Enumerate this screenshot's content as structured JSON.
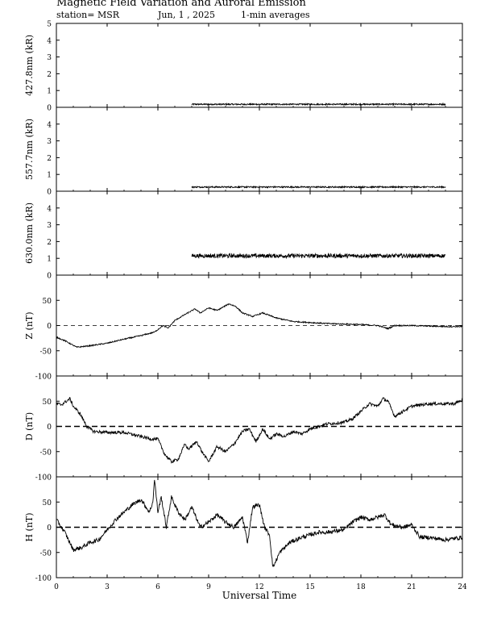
{
  "header": {
    "title": "Magnetic Field Variation and Auroral Emission",
    "station": "station= MSR",
    "date": "Jun, 1 , 2025",
    "averaging": "1-min averages"
  },
  "chart_data": [
    {
      "type": "line",
      "ylabel": "427.8nm (kR)",
      "ylim": [
        0,
        5
      ],
      "yticks": [
        0,
        1,
        2,
        3,
        4,
        5
      ],
      "xlim": [
        0,
        24
      ],
      "x_range": [
        8,
        23
      ],
      "baseline": 0.18,
      "noise": 0.04,
      "grid": false
    },
    {
      "type": "line",
      "ylabel": "557.7nm (kR)",
      "ylim": [
        0,
        5
      ],
      "yticks": [
        0,
        1,
        2,
        3,
        4
      ],
      "xlim": [
        0,
        24
      ],
      "x_range": [
        8,
        23
      ],
      "baseline": 0.25,
      "noise": 0.04,
      "grid": false
    },
    {
      "type": "line",
      "ylabel": "630.0nm (kR)",
      "ylim": [
        0,
        5
      ],
      "yticks": [
        0,
        1,
        2,
        3,
        4
      ],
      "xlim": [
        0,
        24
      ],
      "x_range": [
        8,
        23
      ],
      "baseline": 1.15,
      "noise": 0.12,
      "grid": false
    },
    {
      "type": "line",
      "ylabel": "Z (nT)",
      "ylim": [
        -100,
        100
      ],
      "yticks": [
        -100,
        -50,
        0,
        50
      ],
      "xlim": [
        0,
        24
      ],
      "zero_line": "dashed-thin",
      "noise": 1.2,
      "x": [
        0,
        0.5,
        1.2,
        2,
        3,
        4,
        5,
        5.8,
        6.3,
        6.6,
        7,
        7.5,
        8.2,
        8.5,
        9,
        9.5,
        10.2,
        10.6,
        11,
        11.6,
        12.2,
        13,
        14,
        15,
        16,
        17,
        18,
        19,
        19.6,
        20,
        21,
        22,
        23,
        24
      ],
      "y": [
        -23,
        -30,
        -43,
        -40,
        -35,
        -27,
        -20,
        -13,
        0,
        -5,
        10,
        20,
        33,
        25,
        35,
        30,
        43,
        38,
        25,
        18,
        25,
        15,
        8,
        6,
        4,
        3,
        2,
        0,
        -6,
        0,
        0,
        -1,
        -2,
        -2
      ]
    },
    {
      "type": "line",
      "ylabel": "D (nT)",
      "ylim": [
        -100,
        100
      ],
      "yticks": [
        -100,
        -50,
        0,
        50
      ],
      "xlim": [
        0,
        24
      ],
      "zero_line": "dashed-thick",
      "noise": 3,
      "x": [
        0,
        0.3,
        0.8,
        1,
        1.4,
        1.8,
        2.2,
        3,
        4,
        5,
        5.6,
        6,
        6.4,
        6.8,
        7.2,
        7.6,
        7.8,
        8.3,
        8.6,
        9,
        9.5,
        10,
        10.5,
        11,
        11.4,
        11.8,
        12.2,
        12.6,
        13,
        13.5,
        14,
        14.5,
        15,
        16,
        17,
        17.5,
        18,
        18.5,
        19,
        19.3,
        19.6,
        20,
        20.5,
        21,
        22,
        23,
        23.5,
        24
      ],
      "y": [
        45,
        43,
        55,
        40,
        25,
        0,
        -10,
        -12,
        -12,
        -20,
        -25,
        -25,
        -55,
        -70,
        -65,
        -35,
        -45,
        -30,
        -50,
        -70,
        -40,
        -50,
        -35,
        -10,
        -5,
        -30,
        -5,
        -25,
        -15,
        -20,
        -10,
        -15,
        -5,
        5,
        8,
        15,
        30,
        45,
        40,
        55,
        50,
        20,
        30,
        40,
        45,
        45,
        45,
        52
      ]
    },
    {
      "type": "line",
      "ylabel": "H (nT)",
      "ylim": [
        -100,
        100
      ],
      "yticks": [
        -100,
        -50,
        0,
        50
      ],
      "xlim": [
        0,
        24
      ],
      "zero_line": "dashed-thick",
      "noise": 4,
      "x": [
        0,
        0.5,
        1,
        1.5,
        2,
        2.5,
        3,
        3.5,
        4,
        4.5,
        5,
        5.5,
        5.7,
        5.8,
        6,
        6.2,
        6.5,
        6.8,
        7.2,
        7.6,
        8,
        8.5,
        9,
        9.5,
        10,
        10.5,
        11,
        11.3,
        11.6,
        12,
        12.3,
        12.6,
        12.8,
        13.2,
        13.8,
        14.5,
        15,
        15.5,
        16,
        17,
        17.5,
        18,
        18.5,
        19,
        19.4,
        19.8,
        20.5,
        21,
        21.5,
        22,
        23,
        24
      ],
      "y": [
        15,
        -10,
        -45,
        -40,
        -30,
        -25,
        -5,
        15,
        30,
        45,
        55,
        30,
        50,
        95,
        30,
        60,
        0,
        60,
        30,
        15,
        40,
        0,
        10,
        25,
        10,
        0,
        20,
        -30,
        40,
        45,
        0,
        -15,
        -80,
        -50,
        -30,
        -20,
        -15,
        -10,
        -10,
        -5,
        10,
        20,
        15,
        20,
        25,
        5,
        0,
        5,
        -20,
        -20,
        -25,
        -20
      ]
    }
  ],
  "xaxis": {
    "label": "Universal Time",
    "ticks": [
      0,
      3,
      6,
      9,
      12,
      15,
      18,
      21,
      24
    ]
  }
}
